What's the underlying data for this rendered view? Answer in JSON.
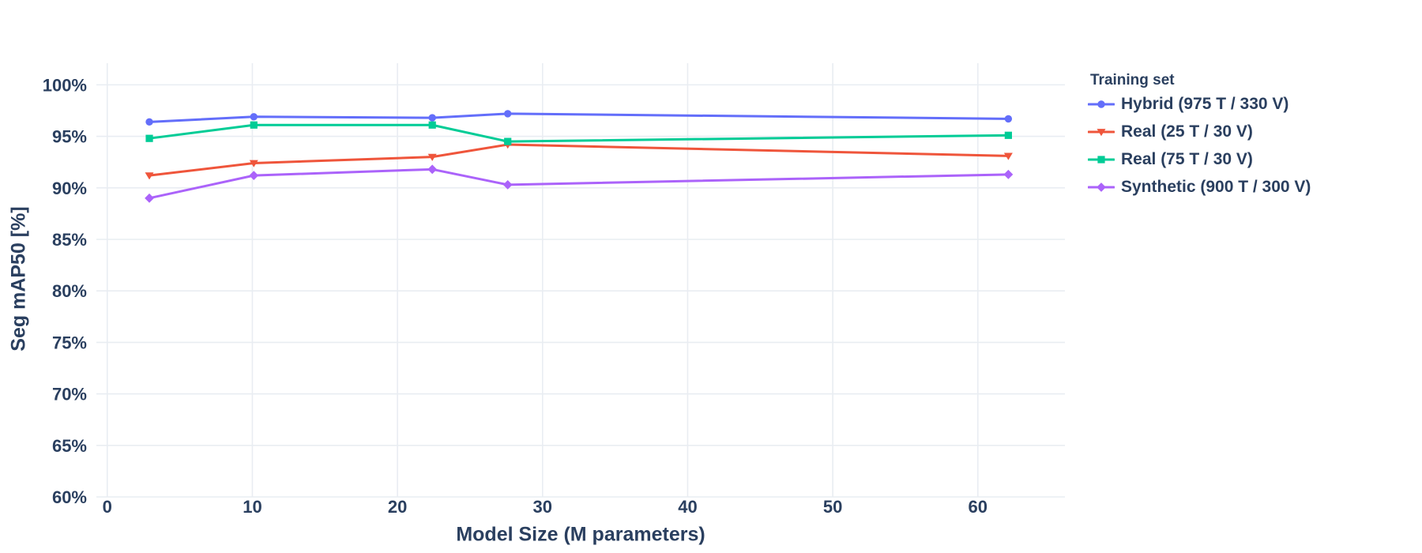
{
  "font_color": "#2a3f5f",
  "grid_color": "#E9EDF2",
  "background": "#ffffff",
  "chart_data": {
    "type": "line",
    "title": "",
    "xlabel": "Model Size (M parameters)",
    "ylabel": "Seg mAP50 [%]",
    "legend_title": "Training set",
    "legend_position": "right",
    "grid": true,
    "x": [
      2.9,
      10.1,
      22.4,
      27.6,
      62.1
    ],
    "series": [
      {
        "name": "Hybrid (975 T / 330 V)",
        "color": "#636EFA",
        "marker": "circle",
        "values": [
          96.4,
          96.9,
          96.8,
          97.2,
          96.7
        ]
      },
      {
        "name": "Real (25 T / 30 V)",
        "color": "#EF553B",
        "marker": "triangle-down",
        "values": [
          91.2,
          92.4,
          93.0,
          94.2,
          93.1
        ]
      },
      {
        "name": "Real (75 T / 30 V)",
        "color": "#00CC96",
        "marker": "square",
        "values": [
          94.8,
          96.1,
          96.1,
          94.5,
          95.1
        ]
      },
      {
        "name": "Synthetic (900 T / 300 V)",
        "color": "#AB63FA",
        "marker": "diamond",
        "values": [
          89.0,
          91.2,
          91.8,
          90.3,
          91.3
        ]
      }
    ],
    "xaxis": {
      "range": [
        -0.75,
        66.0
      ],
      "ticks": [
        0,
        10,
        20,
        30,
        40,
        50,
        60
      ],
      "tick_suffix": ""
    },
    "yaxis": {
      "range": [
        60,
        102.1
      ],
      "ticks": [
        60,
        65,
        70,
        75,
        80,
        85,
        90,
        95,
        100
      ],
      "tick_suffix": "%"
    }
  }
}
